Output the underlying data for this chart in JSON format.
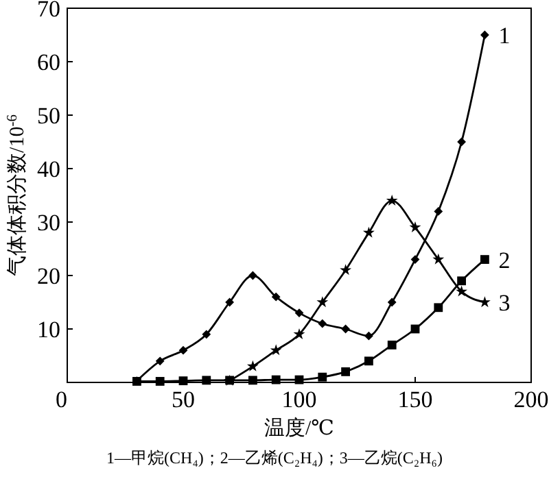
{
  "chart_data": {
    "type": "line",
    "xlabel": "温度/℃",
    "ylabel": "气体体积分数/10$^{-6}$",
    "xlim": [
      0,
      200
    ],
    "xticks": [
      0,
      50,
      100,
      150,
      200
    ],
    "ylim": [
      0,
      70
    ],
    "yticks": [
      {
        "value": 0,
        "label": null
      },
      10,
      20,
      30,
      40,
      50,
      60,
      70
    ],
    "grid": false,
    "line_style": "solid",
    "series": [
      {
        "name": "1",
        "color": "#000000",
        "marker": "diamond",
        "x": [
          30,
          40,
          50,
          60,
          70,
          80,
          90,
          100,
          110,
          120,
          130,
          140,
          150,
          160,
          170,
          180
        ],
        "values": [
          0.3,
          4,
          6,
          9,
          15,
          20,
          16,
          13,
          11,
          10,
          8.7,
          15,
          23,
          32,
          45,
          65
        ]
      },
      {
        "name": "2",
        "color": "#000000",
        "marker": "square",
        "x": [
          30,
          40,
          50,
          60,
          70,
          80,
          90,
          100,
          110,
          120,
          130,
          140,
          150,
          160,
          170,
          180
        ],
        "values": [
          0.2,
          0.2,
          0.3,
          0.4,
          0.4,
          0.4,
          0.5,
          0.5,
          1,
          2,
          4,
          7,
          10,
          14,
          19,
          23
        ]
      },
      {
        "name": "3",
        "color": "#000000",
        "marker": "star",
        "x": [
          70,
          80,
          90,
          100,
          110,
          120,
          130,
          140,
          150,
          160,
          170,
          180
        ],
        "values": [
          0.3,
          3,
          6,
          9,
          15,
          21,
          28,
          34,
          29,
          23,
          17,
          15
        ]
      }
    ],
    "annotations": [
      "1—甲烷(CH₄)；2—乙烯(C₂H₄)；3—乙烷(C₂H₆)"
    ]
  }
}
